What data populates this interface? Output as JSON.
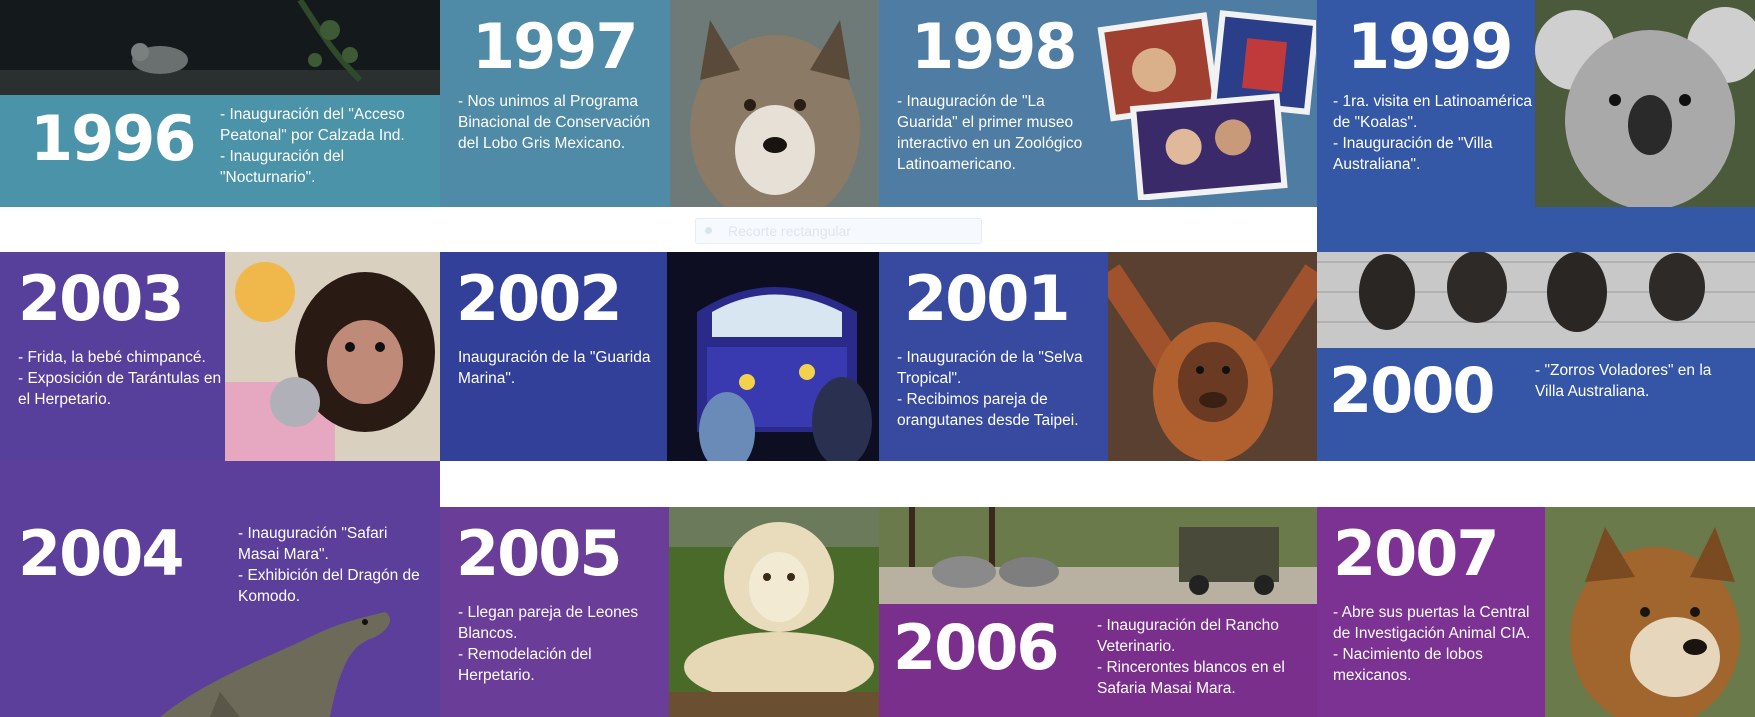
{
  "colors": {
    "teal": "#4a93a8",
    "slate_blue": "#4e7ca3",
    "royal_blue": "#3558a6",
    "indigo": "#33409a",
    "navy_blue": "#374aa0",
    "violet": "#5b3f9a",
    "purple": "#6a3d99",
    "magenta_purple": "#7a2f8c",
    "plum": "#7b3292"
  },
  "timeline": {
    "y1996": {
      "year": "1996",
      "lines": [
        "- Inauguración del \"Acceso Peatonal\" por Calzada Ind.",
        "- Inauguración del \"Nocturnario\"."
      ]
    },
    "y1997": {
      "year": "1997",
      "lines": [
        "- Nos unimos al Programa Binacional de Conservación del Lobo Gris Mexicano."
      ]
    },
    "y1998": {
      "year": "1998",
      "lines": [
        "- Inauguración de \"La Guarida\" el primer museo interactivo en un Zoológico Latinoamericano."
      ]
    },
    "y1999": {
      "year": "1999",
      "lines": [
        "- 1ra. visita en Latinoamérica de \"Koalas\".",
        "- Inauguración de \"Villa Australiana\"."
      ]
    },
    "y2000": {
      "year": "2000",
      "lines": [
        "- \"Zorros Voladores\" en la Villa Australiana."
      ]
    },
    "y2001": {
      "year": "2001",
      "lines": [
        "- Inauguración de la \"Selva Tropical\".",
        "- Recibimos pareja de orangutanes desde Taipei."
      ]
    },
    "y2002": {
      "year": "2002",
      "lines": [
        "Inauguración de la \"Guarida Marina\"."
      ]
    },
    "y2003": {
      "year": "2003",
      "lines": [
        "- Frida, la bebé chimpancé.",
        "- Exposición de Tarántulas en el Herpetario."
      ]
    },
    "y2004": {
      "year": "2004",
      "lines": [
        "- Inauguración \"Safari Masai Mara\".",
        "- Exhibición del Dragón de Komodo."
      ]
    },
    "y2005": {
      "year": "2005",
      "lines": [
        "- Llegan pareja de Leones Blancos.",
        "- Remodelación del Herpetario."
      ]
    },
    "y2006": {
      "year": "2006",
      "lines": [
        "- Inauguración del Rancho Veterinario.",
        "- Rincerontes blancos en el Safaria Masai Mara."
      ]
    },
    "y2007": {
      "year": "2007",
      "lines": [
        "- Abre sus puertas la Central de Investigación Animal CIA.",
        "- Nacimiento de lobos mexicanos."
      ]
    }
  },
  "toolbar": {
    "label": "Recorte rectangular"
  }
}
